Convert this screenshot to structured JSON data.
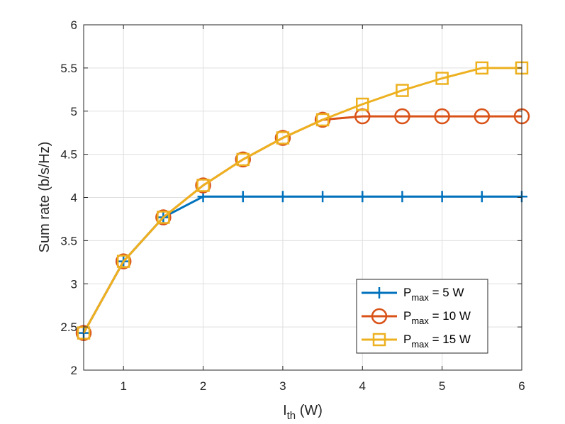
{
  "chart_data": {
    "type": "line",
    "title": "",
    "xlabel": {
      "main": "I",
      "sub": "th",
      "unit": " (W)"
    },
    "ylabel": "Sum rate (b/s/Hz)",
    "xlim": [
      0.5,
      6
    ],
    "ylim": [
      2,
      6
    ],
    "xticks": [
      1,
      2,
      3,
      4,
      5,
      6
    ],
    "yticks": [
      2,
      2.5,
      3,
      3.5,
      4,
      4.5,
      5,
      5.5,
      6
    ],
    "ytick_labels": [
      "2",
      "2.5",
      "3",
      "3.5",
      "4",
      "4.5",
      "5",
      "5.5",
      "6"
    ],
    "grid": true,
    "legend_position": "bottom-right",
    "x": [
      0.5,
      1,
      1.5,
      2,
      2.5,
      3,
      3.5,
      4,
      4.5,
      5,
      5.5,
      6
    ],
    "series": [
      {
        "name": "P_max = 5 W",
        "label_main": "P",
        "label_sub": "max",
        "label_rest": " = 5 W",
        "color": "#0072BD",
        "marker": "plus",
        "values": [
          2.43,
          3.26,
          3.77,
          4.01,
          4.01,
          4.01,
          4.01,
          4.01,
          4.01,
          4.01,
          4.01,
          4.01
        ]
      },
      {
        "name": "P_max = 10 W",
        "label_main": "P",
        "label_sub": "max",
        "label_rest": " = 10 W",
        "color": "#D95319",
        "marker": "circle",
        "values": [
          2.43,
          3.26,
          3.77,
          4.14,
          4.44,
          4.69,
          4.9,
          4.94,
          4.94,
          4.94,
          4.94,
          4.94
        ]
      },
      {
        "name": "P_max = 15 W",
        "label_main": "P",
        "label_sub": "max",
        "label_rest": " = 15 W",
        "color": "#EDB120",
        "marker": "square",
        "values": [
          2.43,
          3.26,
          3.77,
          4.14,
          4.44,
          4.69,
          4.9,
          5.08,
          5.24,
          5.38,
          5.5,
          5.5
        ]
      }
    ]
  }
}
